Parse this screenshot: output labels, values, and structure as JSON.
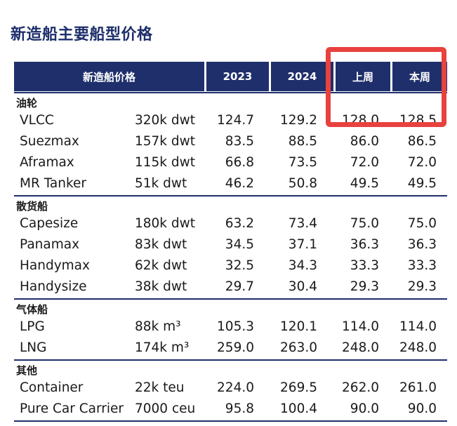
{
  "title": "新造船主要船型价格",
  "header": {
    "label": "新造船价格",
    "col_2023": "2023",
    "col_2024": "2024",
    "col_last_week": "上周",
    "col_this_week": "本周"
  },
  "highlight_color": "#e8413e",
  "header_color": "#1e2f6b",
  "groups": [
    {
      "name": "油轮",
      "rows": [
        {
          "name": "VLCC",
          "size": "320k dwt",
          "v2023": "124.7",
          "v2024": "129.2",
          "last": "128.0",
          "this": "128.5"
        },
        {
          "name": "Suezmax",
          "size": "157k dwt",
          "v2023": "83.5",
          "v2024": "88.5",
          "last": "86.0",
          "this": "86.5"
        },
        {
          "name": "Aframax",
          "size": "115k dwt",
          "v2023": "66.8",
          "v2024": "73.5",
          "last": "72.0",
          "this": "72.0"
        },
        {
          "name": "MR Tanker",
          "size": "51k dwt",
          "v2023": "46.2",
          "v2024": "50.8",
          "last": "49.5",
          "this": "49.5"
        }
      ]
    },
    {
      "name": "散货船",
      "rows": [
        {
          "name": "Capesize",
          "size": "180k dwt",
          "v2023": "63.2",
          "v2024": "73.4",
          "last": "75.0",
          "this": "75.0"
        },
        {
          "name": "Panamax",
          "size": "83k dwt",
          "v2023": "34.5",
          "v2024": "37.1",
          "last": "36.3",
          "this": "36.3"
        },
        {
          "name": "Handymax",
          "size": "62k dwt",
          "v2023": "32.5",
          "v2024": "34.3",
          "last": "33.3",
          "this": "33.3"
        },
        {
          "name": "Handysize",
          "size": "38k dwt",
          "v2023": "29.7",
          "v2024": "30.4",
          "last": "29.3",
          "this": "29.3"
        }
      ]
    },
    {
      "name": "气体船",
      "rows": [
        {
          "name": "LPG",
          "size": "88k m³",
          "v2023": "105.3",
          "v2024": "120.1",
          "last": "114.0",
          "this": "114.0"
        },
        {
          "name": "LNG",
          "size": "174k m³",
          "v2023": "259.0",
          "v2024": "263.0",
          "last": "248.0",
          "this": "248.0"
        }
      ]
    },
    {
      "name": "其他",
      "rows": [
        {
          "name": "Container",
          "size": "22k teu",
          "v2023": "224.0",
          "v2024": "269.5",
          "last": "262.0",
          "this": "261.0"
        },
        {
          "name": "Pure Car Carrier",
          "size": "7000 ceu",
          "v2023": "95.8",
          "v2024": "100.4",
          "last": "90.0",
          "this": "90.0"
        }
      ]
    }
  ]
}
